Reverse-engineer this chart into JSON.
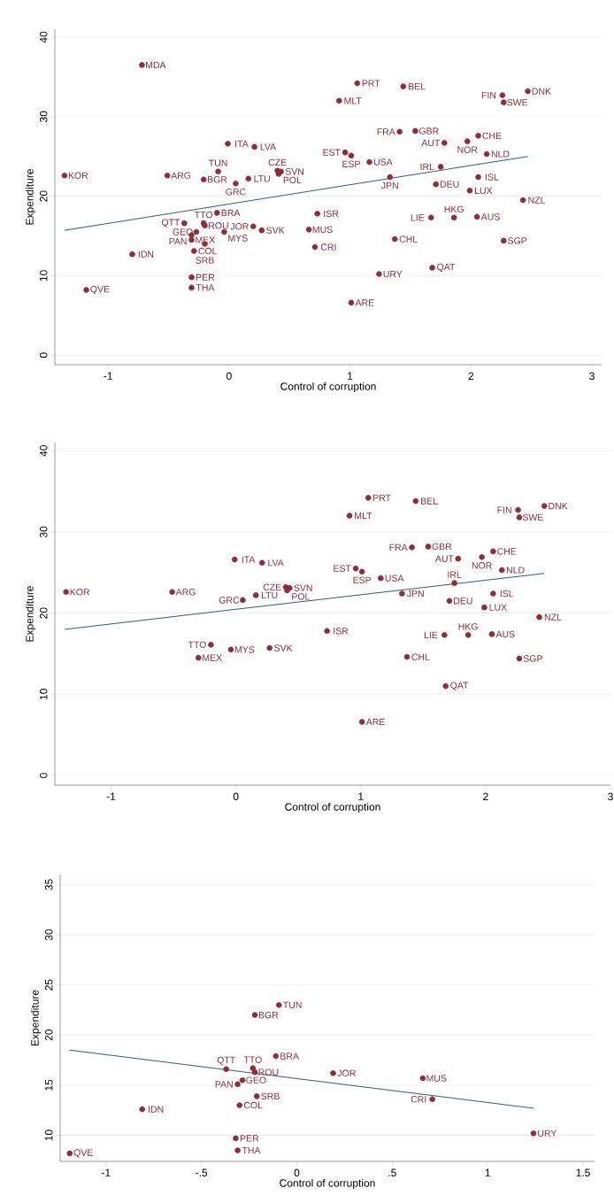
{
  "chart_data": [
    {
      "type": "scatter",
      "xlabel": "Control of corruption",
      "ylabel": "Expenditure",
      "xlim": [
        -1.44,
        3.08
      ],
      "ylim": [
        -1.2,
        41
      ],
      "xticks": [
        -1,
        0,
        1,
        2,
        3
      ],
      "yticks": [
        0,
        10,
        20,
        30,
        40
      ],
      "grid": "y",
      "series": [
        {
          "type": "scatter",
          "color": "#8b2e3a",
          "x": [
            -0.72,
            -1.36,
            -0.51,
            -0.21,
            -0.09,
            -0.01,
            0.21,
            0.16,
            0.055,
            0.4,
            0.43,
            0.41,
            0.91,
            1.06,
            1.44,
            0.96,
            1.01,
            1.16,
            1.33,
            1.41,
            1.54,
            1.78,
            1.97,
            2.06,
            2.13,
            1.75,
            1.71,
            2.06,
            1.99,
            2.26,
            2.27,
            2.47,
            2.43,
            -0.1,
            0.73,
            1.67,
            1.86,
            2.05,
            1.37,
            2.27,
            0.66,
            0.71,
            0.2,
            0.27,
            1.68,
            1.24,
            1.01,
            -0.8,
            -1.18,
            -0.31,
            -0.31,
            -0.29,
            -0.37,
            -0.21,
            -0.2,
            -0.27,
            -0.31,
            -0.31,
            -0.2,
            -0.04
          ],
          "values": [
            36.5,
            22.6,
            22.6,
            22.1,
            23.1,
            26.6,
            26.2,
            22.2,
            21.6,
            23.2,
            23.1,
            22.8,
            32.0,
            34.2,
            33.8,
            25.5,
            25.1,
            24.3,
            22.4,
            28.1,
            28.2,
            26.7,
            26.9,
            27.6,
            25.3,
            23.7,
            21.5,
            22.4,
            20.7,
            32.7,
            31.8,
            33.2,
            19.5,
            17.9,
            17.8,
            17.3,
            17.3,
            17.4,
            14.6,
            14.4,
            15.8,
            13.6,
            16.2,
            15.7,
            11.0,
            10.2,
            6.6,
            12.7,
            8.2,
            9.8,
            8.5,
            13.1,
            16.6,
            16.6,
            16.3,
            15.5,
            15.1,
            14.5,
            14.0,
            15.5
          ]
        },
        {
          "type": "line",
          "color": "#2e5b86",
          "x": [
            -1.36,
            2.47
          ],
          "values": [
            15.7,
            25.0
          ]
        }
      ],
      "annotations": [
        {
          "text": "MDA",
          "x": -0.72,
          "y": 36.5
        },
        {
          "text": "KOR",
          "x": -1.36,
          "y": 22.6
        },
        {
          "text": "ARG",
          "x": -0.51,
          "y": 22.6
        },
        {
          "text": "BGR",
          "x": -0.21,
          "y": 22.1
        },
        {
          "text": "TUN",
          "x": -0.09,
          "y": 23.1
        },
        {
          "text": "ITA",
          "x": -0.01,
          "y": 26.6
        },
        {
          "text": "LVA",
          "x": 0.21,
          "y": 26.2
        },
        {
          "text": "LTU",
          "x": 0.16,
          "y": 22.2
        },
        {
          "text": "GRC",
          "x": 0.055,
          "y": 21.6
        },
        {
          "text": "CZE",
          "x": 0.4,
          "y": 23.2
        },
        {
          "text": "SVN",
          "x": 0.43,
          "y": 23.1
        },
        {
          "text": "POL",
          "x": 0.41,
          "y": 22.8
        },
        {
          "text": "MLT",
          "x": 0.91,
          "y": 32.0
        },
        {
          "text": "PRT",
          "x": 1.06,
          "y": 34.2
        },
        {
          "text": "BEL",
          "x": 1.44,
          "y": 33.8
        },
        {
          "text": "EST",
          "x": 0.96,
          "y": 25.5
        },
        {
          "text": "ESP",
          "x": 1.01,
          "y": 25.1
        },
        {
          "text": "USA",
          "x": 1.16,
          "y": 24.3
        },
        {
          "text": "JPN",
          "x": 1.33,
          "y": 22.4
        },
        {
          "text": "FRA",
          "x": 1.41,
          "y": 28.1
        },
        {
          "text": "GBR",
          "x": 1.54,
          "y": 28.2
        },
        {
          "text": "AUT",
          "x": 1.78,
          "y": 26.7
        },
        {
          "text": "NOR",
          "x": 1.97,
          "y": 26.9
        },
        {
          "text": "CHE",
          "x": 2.06,
          "y": 27.6
        },
        {
          "text": "NLD",
          "x": 2.13,
          "y": 25.3
        },
        {
          "text": "IRL",
          "x": 1.75,
          "y": 23.7
        },
        {
          "text": "DEU",
          "x": 1.71,
          "y": 21.5
        },
        {
          "text": "ISL",
          "x": 2.06,
          "y": 22.4
        },
        {
          "text": "LUX",
          "x": 1.99,
          "y": 20.7
        },
        {
          "text": "FIN",
          "x": 2.26,
          "y": 32.7
        },
        {
          "text": "SWE",
          "x": 2.27,
          "y": 31.8
        },
        {
          "text": "DNK",
          "x": 2.47,
          "y": 33.2
        },
        {
          "text": "NZL",
          "x": 2.43,
          "y": 19.5
        },
        {
          "text": "BRA",
          "x": -0.1,
          "y": 17.9
        },
        {
          "text": "ISR",
          "x": 0.73,
          "y": 17.8
        },
        {
          "text": "LIE",
          "x": 1.67,
          "y": 17.3
        },
        {
          "text": "HKG",
          "x": 1.86,
          "y": 17.3
        },
        {
          "text": "AUS",
          "x": 2.05,
          "y": 17.4
        },
        {
          "text": "CHL",
          "x": 1.37,
          "y": 14.6
        },
        {
          "text": "SGP",
          "x": 2.27,
          "y": 14.4
        },
        {
          "text": "MUS",
          "x": 0.66,
          "y": 15.8
        },
        {
          "text": "CRI",
          "x": 0.71,
          "y": 13.6
        },
        {
          "text": "JOR",
          "x": 0.2,
          "y": 16.2
        },
        {
          "text": "SVK",
          "x": 0.27,
          "y": 15.7
        },
        {
          "text": "QAT",
          "x": 1.68,
          "y": 11.0
        },
        {
          "text": "URY",
          "x": 1.24,
          "y": 10.2
        },
        {
          "text": "ARE",
          "x": 1.01,
          "y": 6.6
        },
        {
          "text": "IDN",
          "x": -0.8,
          "y": 12.7
        },
        {
          "text": "QVE",
          "x": -1.18,
          "y": 8.2
        },
        {
          "text": "PER",
          "x": -0.31,
          "y": 9.8
        },
        {
          "text": "THA",
          "x": -0.31,
          "y": 8.5
        },
        {
          "text": "COL",
          "x": -0.29,
          "y": 13.1
        },
        {
          "text": "QTT",
          "x": -0.37,
          "y": 16.6
        },
        {
          "text": "TTO",
          "x": -0.21,
          "y": 16.6
        },
        {
          "text": "ROU",
          "x": -0.2,
          "y": 16.3
        },
        {
          "text": "GEO",
          "x": -0.27,
          "y": 15.5
        },
        {
          "text": "PAN",
          "x": -0.31,
          "y": 15.1
        },
        {
          "text": "MEX",
          "x": -0.31,
          "y": 14.5
        },
        {
          "text": "SRB",
          "x": -0.2,
          "y": 14.0
        },
        {
          "text": "MYS",
          "x": -0.04,
          "y": 15.5
        }
      ]
    },
    {
      "type": "scatter",
      "xlabel": "Control of corruption",
      "ylabel": "Expenditure",
      "xlim": [
        -1.45,
        3.0
      ],
      "ylim": [
        -1.2,
        41
      ],
      "xticks": [
        -1,
        0,
        1,
        2,
        3
      ],
      "yticks": [
        0,
        10,
        20,
        30,
        40
      ],
      "grid": "y",
      "series": [
        {
          "type": "scatter",
          "color": "#8b2e3a",
          "x": [
            -1.36,
            -0.51,
            0.055,
            0.16,
            -0.01,
            0.21,
            0.4,
            0.43,
            0.41,
            0.91,
            1.06,
            1.44,
            0.96,
            1.01,
            1.16,
            1.33,
            1.41,
            1.54,
            1.78,
            1.97,
            2.06,
            2.13,
            1.75,
            1.71,
            2.06,
            1.99,
            2.26,
            2.27,
            2.47,
            2.43,
            0.73,
            1.67,
            1.86,
            2.05,
            1.37,
            2.27,
            1.68,
            1.01,
            -0.2,
            -0.04,
            -0.3,
            0.27
          ],
          "values": [
            22.6,
            22.6,
            21.6,
            22.2,
            26.6,
            26.2,
            23.2,
            23.1,
            22.8,
            32.0,
            34.2,
            33.8,
            25.5,
            25.1,
            24.3,
            22.4,
            28.1,
            28.2,
            26.7,
            26.9,
            27.6,
            25.3,
            23.7,
            21.5,
            22.4,
            20.7,
            32.7,
            31.8,
            33.2,
            19.5,
            17.8,
            17.3,
            17.3,
            17.4,
            14.6,
            14.4,
            11.0,
            6.6,
            16.1,
            15.5,
            14.5,
            15.7
          ]
        },
        {
          "type": "line",
          "color": "#2e5b86",
          "x": [
            -1.37,
            2.47
          ],
          "values": [
            18.0,
            24.9
          ]
        }
      ],
      "annotations": [
        {
          "text": "KOR",
          "x": -1.36,
          "y": 22.6
        },
        {
          "text": "ARG",
          "x": -0.51,
          "y": 22.6
        },
        {
          "text": "GRC",
          "x": 0.055,
          "y": 21.6
        },
        {
          "text": "LTU",
          "x": 0.16,
          "y": 22.2
        },
        {
          "text": "ITA",
          "x": -0.01,
          "y": 26.6
        },
        {
          "text": "LVA",
          "x": 0.21,
          "y": 26.2
        },
        {
          "text": "CZE",
          "x": 0.4,
          "y": 23.2
        },
        {
          "text": "SVN",
          "x": 0.43,
          "y": 23.1
        },
        {
          "text": "POL",
          "x": 0.41,
          "y": 22.8
        },
        {
          "text": "MLT",
          "x": 0.91,
          "y": 32.0
        },
        {
          "text": "PRT",
          "x": 1.06,
          "y": 34.2
        },
        {
          "text": "BEL",
          "x": 1.44,
          "y": 33.8
        },
        {
          "text": "EST",
          "x": 0.96,
          "y": 25.5
        },
        {
          "text": "ESP",
          "x": 1.01,
          "y": 25.1
        },
        {
          "text": "USA",
          "x": 1.16,
          "y": 24.3
        },
        {
          "text": "JPN",
          "x": 1.33,
          "y": 22.4
        },
        {
          "text": "FRA",
          "x": 1.41,
          "y": 28.1
        },
        {
          "text": "GBR",
          "x": 1.54,
          "y": 28.2
        },
        {
          "text": "AUT",
          "x": 1.78,
          "y": 26.7
        },
        {
          "text": "NOR",
          "x": 1.97,
          "y": 26.9
        },
        {
          "text": "CHE",
          "x": 2.06,
          "y": 27.6
        },
        {
          "text": "NLD",
          "x": 2.13,
          "y": 25.3
        },
        {
          "text": "IRL",
          "x": 1.75,
          "y": 23.7
        },
        {
          "text": "DEU",
          "x": 1.71,
          "y": 21.5
        },
        {
          "text": "ISL",
          "x": 2.06,
          "y": 22.4
        },
        {
          "text": "LUX",
          "x": 1.99,
          "y": 20.7
        },
        {
          "text": "FIN",
          "x": 2.26,
          "y": 32.7
        },
        {
          "text": "SWE",
          "x": 2.27,
          "y": 31.8
        },
        {
          "text": "DNK",
          "x": 2.47,
          "y": 33.2
        },
        {
          "text": "NZL",
          "x": 2.43,
          "y": 19.5
        },
        {
          "text": "ISR",
          "x": 0.73,
          "y": 17.8
        },
        {
          "text": "LIE",
          "x": 1.67,
          "y": 17.3
        },
        {
          "text": "HKG",
          "x": 1.86,
          "y": 17.3
        },
        {
          "text": "AUS",
          "x": 2.05,
          "y": 17.4
        },
        {
          "text": "CHL",
          "x": 1.37,
          "y": 14.6
        },
        {
          "text": "SGP",
          "x": 2.27,
          "y": 14.4
        },
        {
          "text": "QAT",
          "x": 1.68,
          "y": 11.0
        },
        {
          "text": "ARE",
          "x": 1.01,
          "y": 6.6
        },
        {
          "text": "TTO",
          "x": -0.2,
          "y": 16.1
        },
        {
          "text": "MYS",
          "x": -0.04,
          "y": 15.5
        },
        {
          "text": "MEX",
          "x": -0.3,
          "y": 14.5
        },
        {
          "text": "SVK",
          "x": 0.27,
          "y": 15.7
        }
      ]
    },
    {
      "type": "scatter",
      "xlabel": "Control of corruption",
      "ylabel": "Expenditure",
      "xlim": [
        -1.24,
        1.56
      ],
      "ylim": [
        7.4,
        36
      ],
      "xticks": [
        -1,
        {
          "value": -0.5,
          "label": "-.5"
        },
        0,
        {
          "value": 0.5,
          "label": ".5"
        },
        1,
        1.5
      ],
      "yticks": [
        10,
        15,
        20,
        25,
        30,
        35
      ],
      "grid": "y",
      "series": [
        {
          "type": "scatter",
          "color": "#8b2e3a",
          "x": [
            -0.094,
            -0.22,
            -0.11,
            -0.37,
            -0.23,
            -0.22,
            -0.285,
            -0.31,
            -0.21,
            -0.3,
            -0.81,
            -0.32,
            -0.31,
            -1.19,
            0.19,
            0.66,
            0.71,
            1.24
          ],
          "values": [
            23.0,
            22.0,
            17.9,
            16.6,
            16.7,
            16.3,
            15.5,
            15.1,
            13.9,
            13.0,
            12.6,
            9.7,
            8.5,
            8.2,
            16.2,
            15.7,
            13.6,
            10.2
          ]
        },
        {
          "type": "line",
          "color": "#2e5b86",
          "x": [
            -1.19,
            1.24
          ],
          "values": [
            18.5,
            12.7
          ]
        }
      ],
      "annotations": [
        {
          "text": "TUN",
          "x": -0.094,
          "y": 23.0
        },
        {
          "text": "BGR",
          "x": -0.22,
          "y": 22.0
        },
        {
          "text": "BRA",
          "x": -0.11,
          "y": 17.9
        },
        {
          "text": "QTT",
          "x": -0.37,
          "y": 16.6
        },
        {
          "text": "TTO",
          "x": -0.23,
          "y": 16.7
        },
        {
          "text": "ROU",
          "x": -0.22,
          "y": 16.3
        },
        {
          "text": "GEO",
          "x": -0.285,
          "y": 15.5
        },
        {
          "text": "PAN",
          "x": -0.31,
          "y": 15.1
        },
        {
          "text": "SRB",
          "x": -0.21,
          "y": 13.9
        },
        {
          "text": "COL",
          "x": -0.3,
          "y": 13.0
        },
        {
          "text": "IDN",
          "x": -0.81,
          "y": 12.6
        },
        {
          "text": "PER",
          "x": -0.32,
          "y": 9.7
        },
        {
          "text": "THA",
          "x": -0.31,
          "y": 8.5
        },
        {
          "text": "QVE",
          "x": -1.19,
          "y": 8.2
        },
        {
          "text": "JOR",
          "x": 0.19,
          "y": 16.2
        },
        {
          "text": "MUS",
          "x": 0.66,
          "y": 15.7
        },
        {
          "text": "CRI",
          "x": 0.71,
          "y": 13.6
        },
        {
          "text": "URY",
          "x": 1.24,
          "y": 10.2
        }
      ]
    }
  ]
}
